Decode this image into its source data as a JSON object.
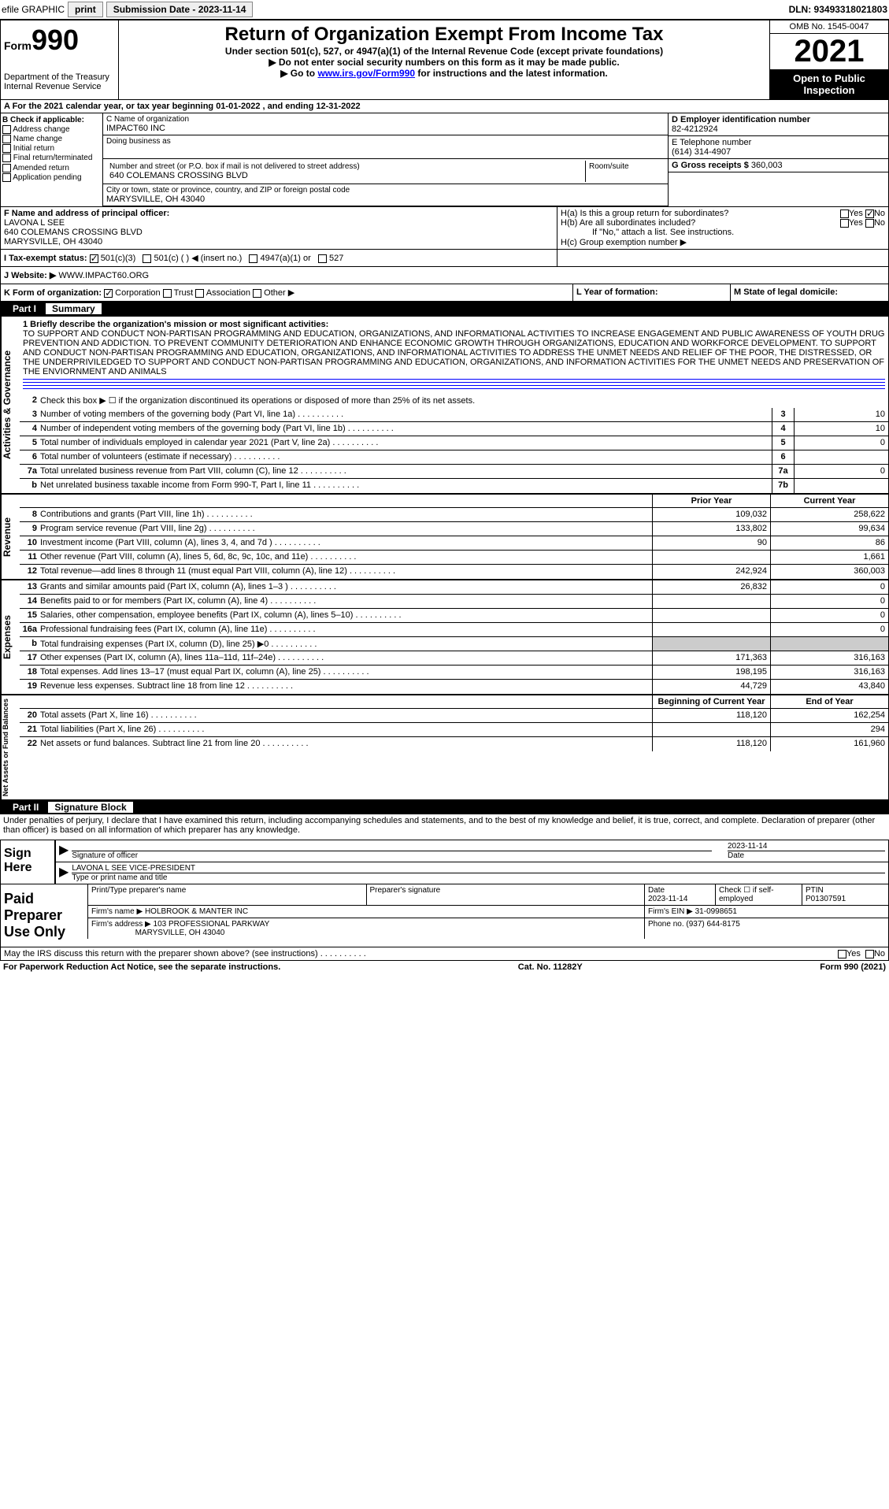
{
  "topbar": {
    "efile": "efile GRAPHIC",
    "print": "print",
    "sub_label": "Submission Date - ",
    "sub_date": "2023-11-14",
    "dln": "DLN: 93493318021803"
  },
  "header": {
    "form_prefix": "Form",
    "form_num": "990",
    "dept": "Department of the Treasury\nInternal Revenue Service",
    "title": "Return of Organization Exempt From Income Tax",
    "sub1": "Under section 501(c), 527, or 4947(a)(1) of the Internal Revenue Code (except private foundations)",
    "sub2": "▶ Do not enter social security numbers on this form as it may be made public.",
    "sub3_pre": "▶ Go to ",
    "sub3_link": "www.irs.gov/Form990",
    "sub3_post": " for instructions and the latest information.",
    "omb": "OMB No. 1545-0047",
    "year": "2021",
    "open": "Open to Public Inspection"
  },
  "row_a": "A   For the 2021 calendar year, or tax year beginning 01-01-2022   , and ending 12-31-2022",
  "col_b": {
    "hdr": "B Check if applicable:",
    "items": [
      "Address change",
      "Name change",
      "Initial return",
      "Final return/terminated",
      "Amended return",
      "Application pending"
    ]
  },
  "col_c": {
    "name_lbl": "C Name of organization",
    "name": "IMPACT60 INC",
    "dba_lbl": "Doing business as",
    "dba": "",
    "addr_lbl": "Number and street (or P.O. box if mail is not delivered to street address)",
    "addr": "640 COLEMANS CROSSING BLVD",
    "room_lbl": "Room/suite",
    "city_lbl": "City or town, state or province, country, and ZIP or foreign postal code",
    "city": "MARYSVILLE, OH  43040"
  },
  "col_d": {
    "d_lbl": "D Employer identification number",
    "d_val": "82-4212924",
    "e_lbl": "E Telephone number",
    "e_val": "(614) 314-4907",
    "g_lbl": "G Gross receipts $ ",
    "g_val": "360,003"
  },
  "row_f": {
    "lbl": "F  Name and address of principal officer:",
    "name": "LAVONA L SEE",
    "addr1": "640 COLEMANS CROSSING BLVD",
    "addr2": "MARYSVILLE, OH  43040"
  },
  "row_h": {
    "ha": "H(a)  Is this a group return for subordinates?",
    "hb": "H(b)  Are all subordinates included?",
    "hb2": "If \"No,\" attach a list. See instructions.",
    "hc": "H(c)  Group exemption number ▶"
  },
  "row_i": {
    "lbl": "I   Tax-exempt status:",
    "opts": [
      "501(c)(3)",
      "501(c) (  ) ◀ (insert no.)",
      "4947(a)(1) or",
      "527"
    ]
  },
  "row_j": {
    "lbl": "J   Website: ▶  ",
    "val": "WWW.IMPACT60.ORG"
  },
  "row_k": "K Form of organization:",
  "k_opts": [
    "Corporation",
    "Trust",
    "Association",
    "Other ▶"
  ],
  "row_l": "L Year of formation:",
  "row_m": "M State of legal domicile:",
  "part1": {
    "hdr_num": "Part I",
    "hdr_txt": "Summary",
    "vert1": "Activities & Governance",
    "vert2": "Revenue",
    "vert3": "Expenses",
    "vert4": "Net Assets or Fund Balances",
    "line1_lbl": "1   Briefly describe the organization's mission or most significant activities:",
    "mission": "TO SUPPORT AND CONDUCT NON-PARTISAN PROGRAMMING AND EDUCATION, ORGANIZATIONS, AND INFORMATIONAL ACTIVITIES TO INCREASE ENGAGEMENT AND PUBLIC AWARENESS OF YOUTH DRUG PREVENTION AND ADDICTION. TO PREVENT COMMUNITY DETERIORATION AND ENHANCE ECONOMIC GROWTH THROUGH ORGANIZATIONS, EDUCATION AND WORKFORCE DEVELOPMENT. TO SUPPORT AND CONDUCT NON-PARTISAN PROGRAMMING AND EDUCATION, ORGANIZATIONS, AND INFORMATIONAL ACTIVITIES TO ADDRESS THE UNMET NEEDS AND RELIEF OF THE POOR, THE DISTRESSED, OR THE UNDERPRIVILEDGED TO SUPPORT AND CONDUCT NON-PARTISAN PROGRAMMING AND EDUCATION, ORGANIZATIONS, AND INFORMATION ACTIVITIES FOR THE UNMET NEEDS AND PRESERVATION OF THE ENVIORNMENT AND ANIMALS",
    "line2": "Check this box ▶ ☐  if the organization discontinued its operations or disposed of more than 25% of its net assets.",
    "lines_gov": [
      {
        "n": "3",
        "t": "Number of voting members of the governing body (Part VI, line 1a)",
        "bn": "3",
        "v": "10"
      },
      {
        "n": "4",
        "t": "Number of independent voting members of the governing body (Part VI, line 1b)",
        "bn": "4",
        "v": "10"
      },
      {
        "n": "5",
        "t": "Total number of individuals employed in calendar year 2021 (Part V, line 2a)",
        "bn": "5",
        "v": "0"
      },
      {
        "n": "6",
        "t": "Total number of volunteers (estimate if necessary)",
        "bn": "6",
        "v": ""
      },
      {
        "n": "7a",
        "t": "Total unrelated business revenue from Part VIII, column (C), line 12",
        "bn": "7a",
        "v": "0"
      },
      {
        "n": "b",
        "t": "Net unrelated business taxable income from Form 990-T, Part I, line 11",
        "bn": "7b",
        "v": ""
      }
    ],
    "prior_hdr": "Prior Year",
    "curr_hdr": "Current Year",
    "lines_rev": [
      {
        "n": "8",
        "t": "Contributions and grants (Part VIII, line 1h)",
        "p": "109,032",
        "c": "258,622"
      },
      {
        "n": "9",
        "t": "Program service revenue (Part VIII, line 2g)",
        "p": "133,802",
        "c": "99,634"
      },
      {
        "n": "10",
        "t": "Investment income (Part VIII, column (A), lines 3, 4, and 7d )",
        "p": "90",
        "c": "86"
      },
      {
        "n": "11",
        "t": "Other revenue (Part VIII, column (A), lines 5, 6d, 8c, 9c, 10c, and 11e)",
        "p": "",
        "c": "1,661"
      },
      {
        "n": "12",
        "t": "Total revenue—add lines 8 through 11 (must equal Part VIII, column (A), line 12)",
        "p": "242,924",
        "c": "360,003"
      }
    ],
    "lines_exp": [
      {
        "n": "13",
        "t": "Grants and similar amounts paid (Part IX, column (A), lines 1–3 )",
        "p": "26,832",
        "c": "0"
      },
      {
        "n": "14",
        "t": "Benefits paid to or for members (Part IX, column (A), line 4)",
        "p": "",
        "c": "0"
      },
      {
        "n": "15",
        "t": "Salaries, other compensation, employee benefits (Part IX, column (A), lines 5–10)",
        "p": "",
        "c": "0"
      },
      {
        "n": "16a",
        "t": "Professional fundraising fees (Part IX, column (A), line 11e)",
        "p": "",
        "c": "0"
      },
      {
        "n": "b",
        "t": "Total fundraising expenses (Part IX, column (D), line 25) ▶0",
        "p": "shaded",
        "c": "shaded"
      },
      {
        "n": "17",
        "t": "Other expenses (Part IX, column (A), lines 11a–11d, 11f–24e)",
        "p": "171,363",
        "c": "316,163"
      },
      {
        "n": "18",
        "t": "Total expenses. Add lines 13–17 (must equal Part IX, column (A), line 25)",
        "p": "198,195",
        "c": "316,163"
      },
      {
        "n": "19",
        "t": "Revenue less expenses. Subtract line 18 from line 12",
        "p": "44,729",
        "c": "43,840"
      }
    ],
    "boy_hdr": "Beginning of Current Year",
    "eoy_hdr": "End of Year",
    "lines_net": [
      {
        "n": "20",
        "t": "Total assets (Part X, line 16)",
        "p": "118,120",
        "c": "162,254"
      },
      {
        "n": "21",
        "t": "Total liabilities (Part X, line 26)",
        "p": "",
        "c": "294"
      },
      {
        "n": "22",
        "t": "Net assets or fund balances. Subtract line 21 from line 20",
        "p": "118,120",
        "c": "161,960"
      }
    ]
  },
  "part2": {
    "hdr_num": "Part II",
    "hdr_txt": "Signature Block",
    "decl": "Under penalties of perjury, I declare that I have examined this return, including accompanying schedules and statements, and to the best of my knowledge and belief, it is true, correct, and complete. Declaration of preparer (other than officer) is based on all information of which preparer has any knowledge.",
    "sign_here": "Sign Here",
    "sig_officer": "Signature of officer",
    "sig_date": "2023-11-14",
    "date_lbl": "Date",
    "officer_name": "LAVONA L SEE  VICE-PRESIDENT",
    "officer_lbl": "Type or print name and title",
    "paid_prep": "Paid Preparer Use Only",
    "prep_name_lbl": "Print/Type preparer's name",
    "prep_sig_lbl": "Preparer's signature",
    "prep_date_lbl": "Date",
    "prep_date": "2023-11-14",
    "check_lbl": "Check ☐ if self-employed",
    "ptin_lbl": "PTIN",
    "ptin": "P01307591",
    "firm_name_lbl": "Firm's name    ▶ ",
    "firm_name": "HOLBROOK & MANTER INC",
    "firm_ein_lbl": "Firm's EIN ▶ ",
    "firm_ein": "31-0998651",
    "firm_addr_lbl": "Firm's address ▶ ",
    "firm_addr1": "103 PROFESSIONAL PARKWAY",
    "firm_addr2": "MARYSVILLE, OH  43040",
    "phone_lbl": "Phone no. ",
    "phone": "(937) 644-8175",
    "discuss": "May the IRS discuss this return with the preparer shown above? (see instructions)",
    "paperwork": "For Paperwork Reduction Act Notice, see the separate instructions.",
    "cat": "Cat. No. 11282Y",
    "form_foot": "Form 990 (2021)"
  }
}
